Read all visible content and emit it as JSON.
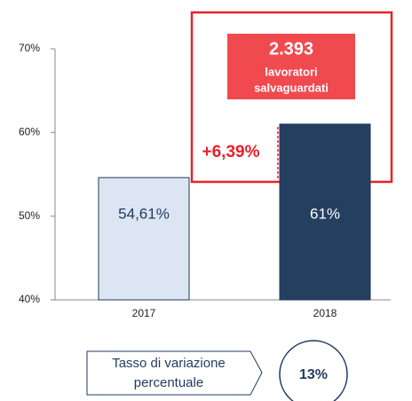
{
  "chart_data": {
    "type": "bar",
    "categories": [
      "2017",
      "2018"
    ],
    "values": [
      54.61,
      61
    ],
    "value_labels": [
      "54,61%",
      "61%"
    ],
    "colors": [
      "#dce6f2",
      "#243f60"
    ],
    "ylim": [
      40,
      70
    ],
    "yticks": [
      {
        "value": 40,
        "label": "40%"
      },
      {
        "value": 50,
        "label": "50%"
      },
      {
        "value": 60,
        "label": "60%"
      },
      {
        "value": 70,
        "label": "70%"
      }
    ],
    "annotations": {
      "headline": "2.393",
      "callout": [
        "lavoratori",
        "salvaguardati"
      ],
      "change": "+6,39%",
      "summary_label": [
        "Tasso di variazione",
        "percentuale"
      ],
      "summary_value": "13%"
    }
  }
}
